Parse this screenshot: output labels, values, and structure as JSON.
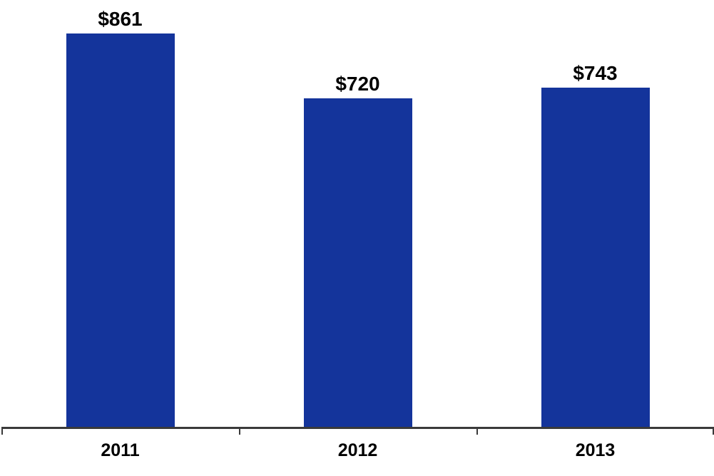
{
  "chart_data": {
    "type": "bar",
    "categories": [
      "2011",
      "2012",
      "2013"
    ],
    "values": [
      861,
      720,
      743
    ],
    "value_labels": [
      "$861",
      "$720",
      "$743"
    ],
    "title": "",
    "xlabel": "",
    "ylabel": "",
    "ylim": [
      0,
      935
    ],
    "grid": false,
    "legend": "none",
    "bar_color": "#14349B",
    "axis_color": "#3a3a3a",
    "label_color": "#000000"
  }
}
